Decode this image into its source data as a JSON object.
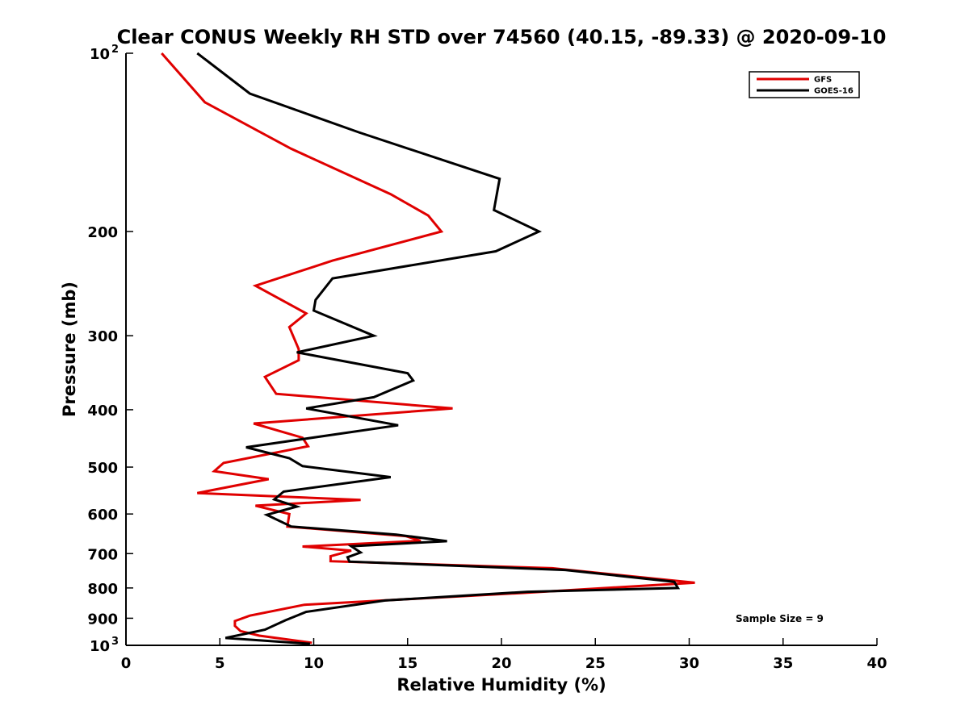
{
  "chart_data": {
    "type": "line",
    "title": "Clear CONUS Weekly RH STD over 74560 (40.15, -89.33) @ 2020-09-10",
    "xlabel": "Relative Humidity (%)",
    "ylabel": "Pressure (mb)",
    "xlim": [
      0,
      40
    ],
    "ylim": [
      100,
      1000
    ],
    "y_scale": "log",
    "y_reversed": true,
    "grid": false,
    "legend_position": "top-right",
    "x_ticks": [
      {
        "value": 0,
        "label": "0"
      },
      {
        "value": 5,
        "label": "5"
      },
      {
        "value": 10,
        "label": "10"
      },
      {
        "value": 15,
        "label": "15"
      },
      {
        "value": 20,
        "label": "20"
      },
      {
        "value": 25,
        "label": "25"
      },
      {
        "value": 30,
        "label": "30"
      },
      {
        "value": 35,
        "label": "35"
      },
      {
        "value": 40,
        "label": "40"
      }
    ],
    "y_ticks": [
      {
        "value": 100,
        "label": "10",
        "sup": "2"
      },
      {
        "value": 200,
        "label": "200"
      },
      {
        "value": 300,
        "label": "300"
      },
      {
        "value": 400,
        "label": "400"
      },
      {
        "value": 500,
        "label": "500"
      },
      {
        "value": 600,
        "label": "600"
      },
      {
        "value": 700,
        "label": "700"
      },
      {
        "value": 800,
        "label": "800"
      },
      {
        "value": 900,
        "label": "900"
      },
      {
        "value": 1000,
        "label": "10",
        "sup": "3"
      }
    ],
    "annotation": "Sample Size = 9",
    "series": [
      {
        "name": "GFS",
        "color": "#e00000",
        "points": [
          [
            1.9,
            100
          ],
          [
            4.2,
            121
          ],
          [
            8.8,
            145
          ],
          [
            14.1,
            173
          ],
          [
            16.1,
            188
          ],
          [
            16.8,
            200
          ],
          [
            11.0,
            224
          ],
          [
            6.9,
            247
          ],
          [
            9.6,
            275
          ],
          [
            8.7,
            290
          ],
          [
            9.2,
            316
          ],
          [
            9.2,
            330
          ],
          [
            7.4,
            352
          ],
          [
            8.0,
            376
          ],
          [
            17.4,
            398
          ],
          [
            6.8,
            422
          ],
          [
            9.4,
            446
          ],
          [
            9.7,
            461
          ],
          [
            5.2,
            492
          ],
          [
            4.7,
            508
          ],
          [
            7.6,
            524
          ],
          [
            3.8,
            553
          ],
          [
            12.5,
            568
          ],
          [
            6.9,
            581
          ],
          [
            8.7,
            600
          ],
          [
            8.6,
            630
          ],
          [
            14.9,
            654
          ],
          [
            15.7,
            666
          ],
          [
            9.4,
            681
          ],
          [
            12.0,
            692
          ],
          [
            10.9,
            707
          ],
          [
            10.9,
            721
          ],
          [
            22.7,
            741
          ],
          [
            30.3,
            784
          ],
          [
            21.0,
            816
          ],
          [
            9.5,
            854
          ],
          [
            6.6,
            891
          ],
          [
            5.8,
            910
          ],
          [
            5.8,
            927
          ],
          [
            6.1,
            946
          ],
          [
            7.1,
            963
          ],
          [
            9.9,
            990
          ]
        ]
      },
      {
        "name": "GOES-16",
        "color": "#000000",
        "points": [
          [
            3.8,
            100
          ],
          [
            6.6,
            117
          ],
          [
            12.4,
            136
          ],
          [
            19.9,
            163
          ],
          [
            19.6,
            184
          ],
          [
            22.0,
            200
          ],
          [
            19.7,
            216
          ],
          [
            11.0,
            240
          ],
          [
            10.1,
            261
          ],
          [
            10.0,
            272
          ],
          [
            13.2,
            300
          ],
          [
            9.1,
            320
          ],
          [
            15.0,
            347
          ],
          [
            15.3,
            357
          ],
          [
            13.2,
            381
          ],
          [
            9.6,
            398
          ],
          [
            14.5,
            425
          ],
          [
            6.4,
            463
          ],
          [
            8.7,
            483
          ],
          [
            9.4,
            498
          ],
          [
            14.1,
            520
          ],
          [
            8.4,
            550
          ],
          [
            7.9,
            567
          ],
          [
            9.1,
            583
          ],
          [
            7.5,
            602
          ],
          [
            8.8,
            630
          ],
          [
            14.4,
            650
          ],
          [
            17.1,
            667
          ],
          [
            12.0,
            680
          ],
          [
            12.5,
            697
          ],
          [
            11.8,
            710
          ],
          [
            11.9,
            722
          ],
          [
            23.4,
            746
          ],
          [
            29.2,
            781
          ],
          [
            29.4,
            800
          ],
          [
            21.4,
            812
          ],
          [
            13.8,
            840
          ],
          [
            9.6,
            878
          ],
          [
            8.5,
            907
          ],
          [
            7.4,
            941
          ],
          [
            5.3,
            972
          ],
          [
            9.8,
            994
          ]
        ]
      }
    ]
  }
}
